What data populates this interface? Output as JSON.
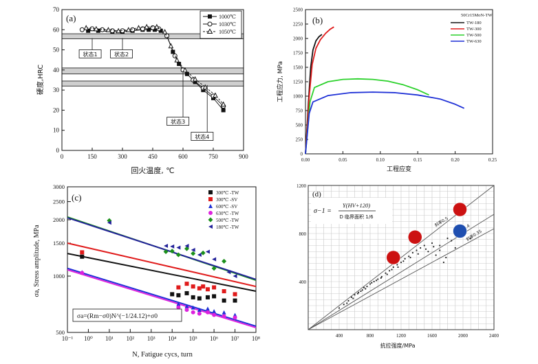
{
  "chart_data": [
    {
      "panel": "(a)",
      "type": "scatter",
      "ylabel": "硬度,HRC",
      "xlabel": "回火温度, ℃",
      "xlim": [
        0,
        900
      ],
      "ylim": [
        0,
        70
      ],
      "xticks": [
        0,
        150,
        300,
        450,
        600,
        750,
        900
      ],
      "yticks": [
        0,
        10,
        20,
        30,
        40,
        50,
        60,
        70
      ],
      "legend": [
        "1000℃",
        "1030℃",
        "1050℃"
      ],
      "bands": [
        [
          55.5,
          58
        ],
        [
          38,
          41
        ],
        [
          32,
          34.5
        ]
      ],
      "band_labels": [
        {
          "text": "状态1",
          "x": 150,
          "y": 55.8,
          "lx": 140,
          "ly": 48
        },
        {
          "text": "状态2",
          "x": 300,
          "y": 55.8,
          "lx": 295,
          "ly": 48
        },
        {
          "text": "状态3",
          "x": 600,
          "y": 38.5,
          "lx": 575,
          "ly": 14.5
        },
        {
          "text": "状态4",
          "x": 720,
          "y": 32.5,
          "lx": 695,
          "ly": 7
        }
      ],
      "series": [
        {
          "name": "1000℃",
          "marker": "square-filled",
          "x": [
            130,
            180,
            250,
            300,
            350,
            400,
            430,
            460,
            490,
            520,
            550,
            580,
            620,
            660,
            700,
            750,
            800
          ],
          "y": [
            59.5,
            59.5,
            59,
            59,
            59.5,
            60,
            60,
            60,
            59.5,
            57,
            49,
            43,
            38,
            34,
            30,
            26,
            20
          ]
        },
        {
          "name": "1030℃",
          "marker": "circle-open",
          "x": [
            100,
            150,
            200,
            250,
            300,
            350,
            400,
            450,
            480,
            520,
            560,
            600,
            650,
            700,
            750,
            800
          ],
          "y": [
            60,
            60.5,
            60,
            59.5,
            59.5,
            60,
            60.5,
            61,
            60.5,
            57,
            47,
            40,
            35,
            31,
            27,
            22
          ]
        },
        {
          "name": "1050℃",
          "marker": "triangle-open",
          "x": [
            120,
            170,
            230,
            280,
            330,
            380,
            420,
            470,
            510,
            540,
            570,
            610,
            660,
            710,
            760,
            800
          ],
          "y": [
            61,
            60.5,
            60,
            59.5,
            60,
            61,
            61.5,
            61.5,
            59,
            52,
            45,
            40,
            35.5,
            31.5,
            27.5,
            23
          ]
        }
      ]
    },
    {
      "panel": "(b)",
      "type": "line",
      "ylabel": "工程应力, MPa",
      "xlabel": "工程应变",
      "xlim": [
        0,
        0.25
      ],
      "ylim": [
        0,
        2500
      ],
      "xticks": [
        "0.00",
        "0.05",
        "0.10",
        "0.15",
        "0.20",
        "0.25"
      ],
      "yticks": [
        "0",
        "250",
        "500",
        "750",
        "1000",
        "1250",
        "1500",
        "1750",
        "2000",
        "2250",
        "2500"
      ],
      "legend_title": "50Cr15MoN-TW",
      "series": [
        {
          "name": "TW-180",
          "color": "#111111",
          "x": [
            0,
            0.004,
            0.007,
            0.01,
            0.014,
            0.018,
            0.022
          ],
          "y": [
            0,
            900,
            1500,
            1800,
            1960,
            2030,
            2070
          ]
        },
        {
          "name": "TW-300",
          "color": "#e01b1b",
          "x": [
            0,
            0.005,
            0.009,
            0.014,
            0.02,
            0.027,
            0.033,
            0.038
          ],
          "y": [
            0,
            1000,
            1550,
            1830,
            1980,
            2090,
            2160,
            2200
          ]
        },
        {
          "name": "TW-500",
          "color": "#2ad12a",
          "x": [
            0,
            0.006,
            0.012,
            0.03,
            0.05,
            0.07,
            0.09,
            0.11,
            0.13,
            0.15,
            0.165
          ],
          "y": [
            0,
            900,
            1150,
            1250,
            1290,
            1300,
            1290,
            1260,
            1200,
            1110,
            1020
          ]
        },
        {
          "name": "TW-630",
          "color": "#1d2fd6",
          "x": [
            0,
            0.005,
            0.01,
            0.03,
            0.06,
            0.09,
            0.12,
            0.15,
            0.18,
            0.2,
            0.212
          ],
          "y": [
            0,
            700,
            900,
            1010,
            1060,
            1070,
            1060,
            1020,
            950,
            860,
            790
          ]
        }
      ]
    },
    {
      "panel": "(c)",
      "type": "scatter",
      "ylabel": "σa, Stress amplitude, MPa",
      "xlabel": "N, Fatigue cycs, turn",
      "xscale": "log",
      "yscale": "log",
      "xlim": [
        0.1,
        100000000
      ],
      "ylim": [
        500,
        3000
      ],
      "xticks": [
        "10⁻¹",
        "10⁰",
        "10¹",
        "10²",
        "10³",
        "10⁴",
        "10⁵",
        "10⁶",
        "10⁷",
        "10⁸"
      ],
      "yticks": [
        "500",
        "1000",
        "1500",
        "2000",
        "2500",
        "3000"
      ],
      "equation": "σa=(Rm−σ0)N^(−1/24.12)+σ0",
      "series": [
        {
          "name": "300℃ -TW",
          "color": "#111111",
          "marker": "square",
          "fit": [
            [
              0.1,
              1320
            ],
            [
              100000000,
              830
            ]
          ],
          "x": [
            0.5,
            10000,
            20000,
            50000,
            100000,
            200000,
            500000,
            1000000,
            3000000,
            10000000
          ],
          "y": [
            1270,
            800,
            790,
            810,
            770,
            760,
            770,
            780,
            740,
            740
          ]
        },
        {
          "name": "300℃ -SV",
          "color": "#e01b1b",
          "marker": "square",
          "fit": [
            [
              0.1,
              1500
            ],
            [
              100000000,
              880
            ]
          ],
          "x": [
            0.5,
            20000,
            50000,
            100000,
            200000,
            300000,
            500000,
            1000000,
            3000000,
            10000000
          ],
          "y": [
            1340,
            870,
            910,
            880,
            860,
            880,
            850,
            870,
            830,
            800
          ]
        },
        {
          "name": "600℃ -SV",
          "color": "#1d2fd6",
          "marker": "triangle",
          "fit": [
            [
              0.1,
              1100
            ],
            [
              100000000,
              540
            ]
          ],
          "x": [
            0.5,
            20000,
            50000,
            100000,
            200000,
            500000,
            1000000,
            3000000,
            10000000
          ],
          "y": [
            1050,
            710,
            690,
            680,
            660,
            670,
            650,
            640,
            620
          ]
        },
        {
          "name": "630℃ -TW",
          "color": "#dd22dd",
          "marker": "circle",
          "fit": [
            [
              0.1,
              1080
            ],
            [
              100000000,
              530
            ]
          ],
          "x": [
            0.5,
            20000,
            50000,
            100000,
            200000,
            500000,
            1000000,
            3000000,
            10000000
          ],
          "y": [
            1040,
            680,
            660,
            640,
            630,
            640,
            620,
            610,
            600
          ]
        },
        {
          "name": "500℃ -TW",
          "color": "#1a8f1a",
          "marker": "diamond",
          "fit": [
            [
              0.1,
              2070
            ],
            [
              100000000,
              950
            ]
          ],
          "x": [
            10,
            5000,
            10000,
            20000,
            50000,
            100000,
            300000,
            1000000,
            3000000
          ],
          "y": [
            1980,
            1350,
            1360,
            1300,
            1400,
            1320,
            1330,
            1100,
            1200
          ]
        },
        {
          "name": "180℃ -TW",
          "color": "#23229a",
          "marker": "triangle-left",
          "fit": [
            [
              0.1,
              2050
            ],
            [
              100000000,
              960
            ]
          ],
          "x": [
            10,
            5000,
            10000,
            20000,
            50000,
            100000,
            200000,
            500000,
            1000000,
            5000000,
            10000000
          ],
          "y": [
            1930,
            1450,
            1440,
            1420,
            1450,
            1380,
            1300,
            1350,
            1230,
            1050,
            1000
          ]
        }
      ]
    },
    {
      "panel": "(d)",
      "type": "scatter",
      "ylabel": "",
      "xlabel": "抗拉强度/MPa",
      "xlim": [
        0,
        2400
      ],
      "ylim": [
        0,
        1200
      ],
      "xticks": [
        "400",
        "800",
        "1200",
        "1600",
        "2000",
        "2400"
      ],
      "yticks": [
        "400",
        "800",
        "1200"
      ],
      "formula_lhs": "σ−1 =",
      "formula_num": "Y(HV+120)",
      "formula_den": "D 临界面积 1/6",
      "line_labels": [
        "斜率0.5",
        "斜率0.4",
        "斜率0.35"
      ],
      "highlight_points": [
        {
          "x": 1100,
          "y": 600,
          "color": "#cc1111"
        },
        {
          "x": 1380,
          "y": 770,
          "color": "#cc1111"
        },
        {
          "x": 1960,
          "y": 1000,
          "color": "#cc1111"
        },
        {
          "x": 1960,
          "y": 820,
          "color": "#1f4fb0"
        }
      ],
      "scatter": {
        "x": [
          400,
          460,
          520,
          560,
          600,
          650,
          700,
          720,
          760,
          800,
          850,
          900,
          950,
          1000,
          1050,
          1100,
          1150,
          1200,
          1250,
          1300,
          1350,
          1400,
          1450,
          1500,
          1550,
          1600,
          1650,
          1700,
          1750,
          1800,
          500,
          580,
          640,
          680,
          740,
          820,
          880,
          940,
          1020,
          1080,
          1160,
          1230,
          1320,
          1420,
          1520,
          1620,
          1700,
          1780,
          1850,
          1900,
          2100
        ],
        "y": [
          180,
          210,
          240,
          270,
          290,
          310,
          330,
          350,
          360,
          380,
          400,
          420,
          440,
          470,
          490,
          520,
          540,
          560,
          590,
          610,
          640,
          660,
          680,
          700,
          650,
          720,
          620,
          700,
          560,
          760,
          220,
          260,
          300,
          320,
          340,
          390,
          410,
          430,
          460,
          500,
          520,
          570,
          600,
          630,
          670,
          690,
          660,
          600,
          740,
          680,
          760
        ]
      }
    }
  ]
}
